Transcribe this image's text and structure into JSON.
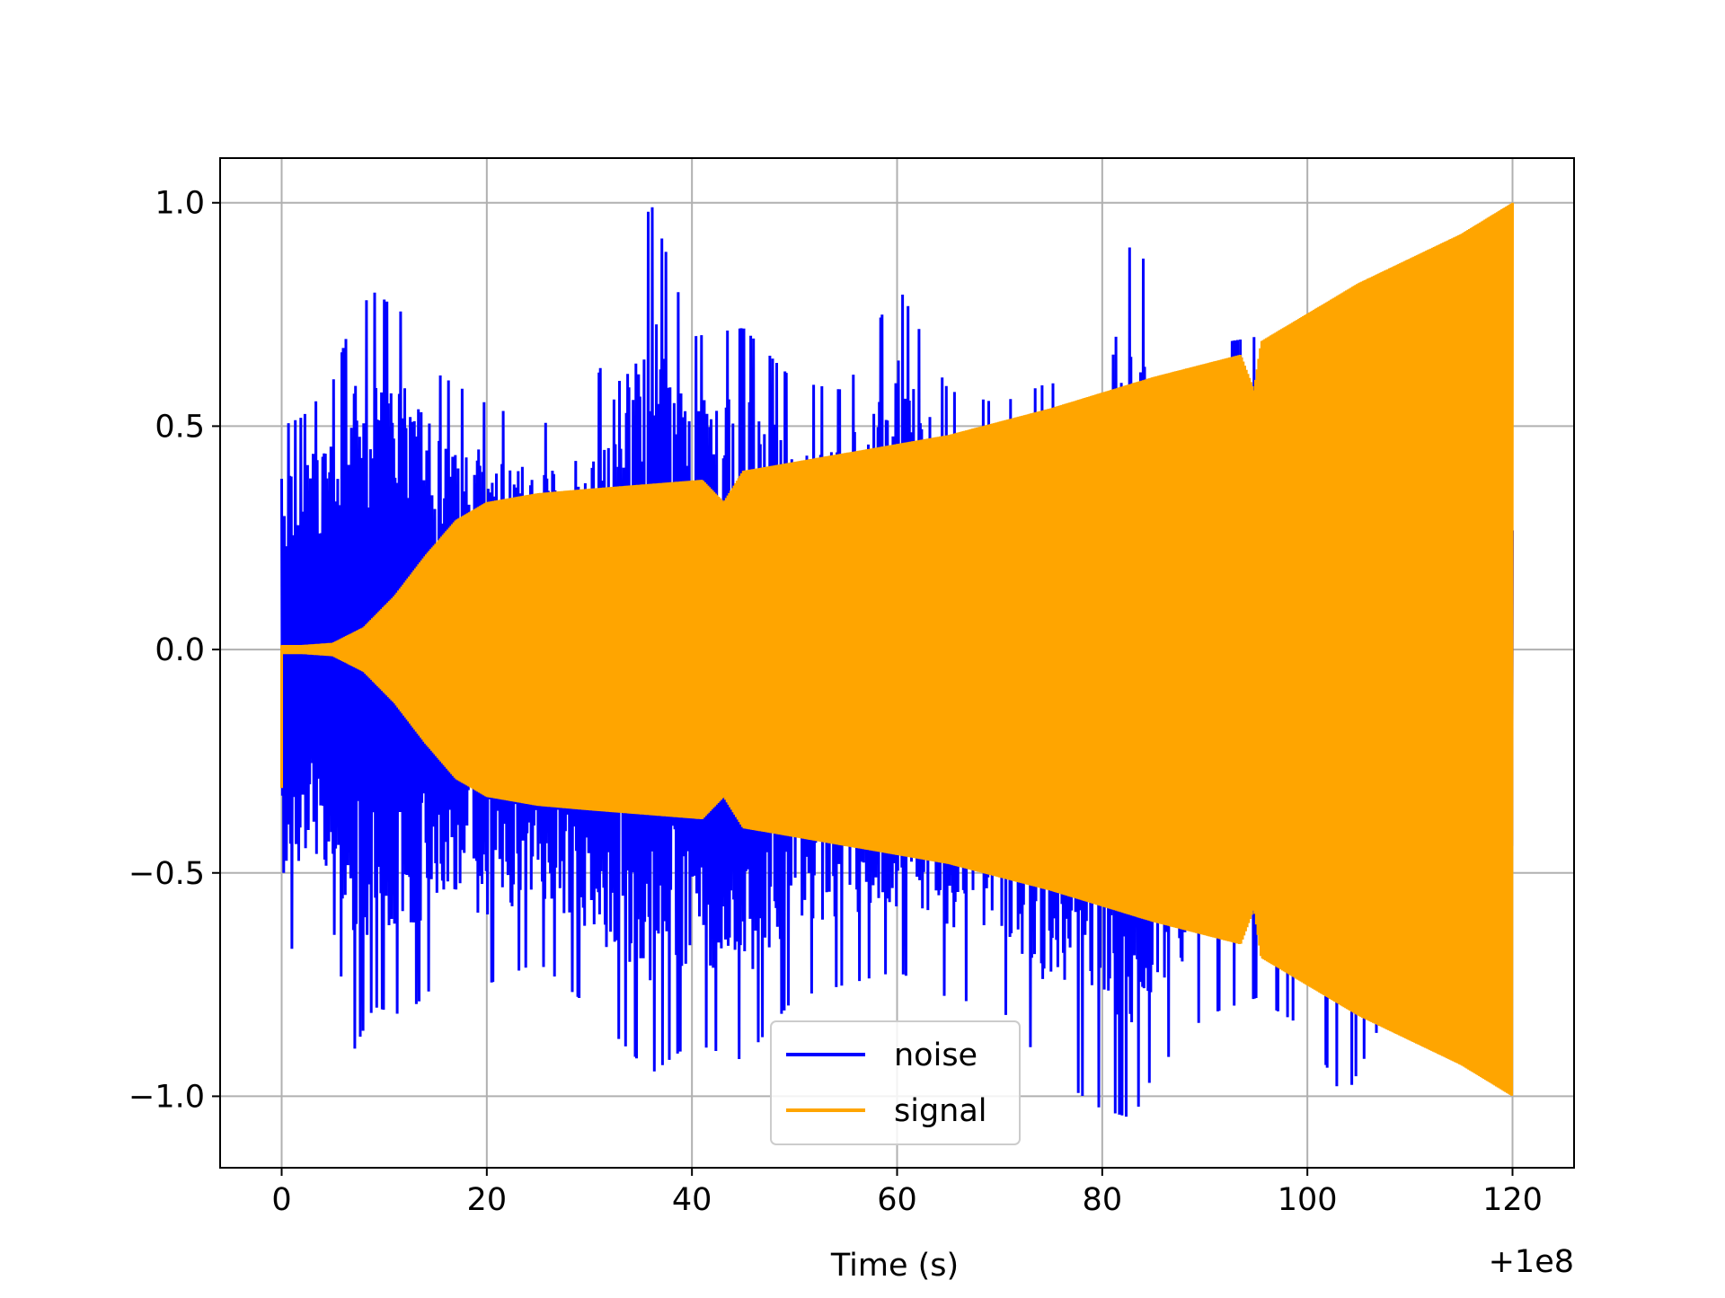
{
  "chart_data": {
    "type": "line",
    "title": "",
    "xlabel": "Time (s)",
    "ylabel": "",
    "x_offset_label": "+1e8",
    "xlim": [
      -6,
      126
    ],
    "ylim": [
      -1.16,
      1.1
    ],
    "grid": true,
    "legend_position": "lower center",
    "xticks": [
      0,
      20,
      40,
      60,
      80,
      100,
      120
    ],
    "yticks": [
      1.0,
      0.5,
      0.0,
      -0.5,
      -1.0
    ],
    "xtick_labels": [
      "0",
      "20",
      "40",
      "60",
      "80",
      "100",
      "120"
    ],
    "ytick_labels": [
      "1.0",
      "0.5",
      "0.0",
      "−0.5",
      "−1.0"
    ],
    "series": [
      {
        "name": "noise",
        "color": "#0000ff",
        "x_range": [
          0,
          120
        ],
        "envelope_x": [
          0,
          2,
          5,
          7,
          9,
          12,
          15,
          20,
          25,
          30,
          36,
          40,
          45,
          50,
          55,
          60,
          65,
          70,
          75,
          80,
          83,
          85,
          90,
          95,
          100,
          103.6,
          110,
          120
        ],
        "envelope_upper": [
          0.5,
          0.52,
          0.6,
          0.75,
          0.8,
          0.75,
          0.62,
          0.55,
          0.5,
          0.55,
          1.0,
          0.7,
          0.72,
          0.6,
          0.58,
          0.82,
          0.58,
          0.55,
          0.6,
          0.5,
          0.95,
          0.8,
          0.68,
          0.7,
          0.65,
          0.6,
          0.45,
          0.4
        ],
        "envelope_lower": [
          -0.74,
          -0.6,
          -0.62,
          -0.9,
          -0.8,
          -0.82,
          -0.75,
          -0.75,
          -0.7,
          -0.8,
          -0.95,
          -0.88,
          -0.92,
          -0.78,
          -0.75,
          -0.72,
          -0.78,
          -0.8,
          -0.95,
          -1.03,
          -1.05,
          -0.95,
          -0.82,
          -0.78,
          -0.85,
          -1.01,
          -0.7,
          -0.6
        ]
      },
      {
        "name": "signal",
        "color": "#ffa500",
        "x_range": [
          0,
          120
        ],
        "envelope_x": [
          0,
          0.3,
          2,
          5,
          8,
          11,
          14,
          17,
          20,
          25,
          30,
          41,
          43.1,
          45,
          55,
          65,
          75,
          85,
          93.5,
          94.8,
          95.5,
          105,
          115,
          120
        ],
        "envelope_amplitude": [
          0.01,
          0.01,
          0.01,
          0.015,
          0.05,
          0.12,
          0.21,
          0.29,
          0.33,
          0.35,
          0.36,
          0.38,
          0.33,
          0.4,
          0.44,
          0.48,
          0.54,
          0.61,
          0.66,
          0.58,
          0.69,
          0.82,
          0.93,
          1.0
        ],
        "initial_spike": [
          -0.31,
          0.01
        ]
      }
    ]
  }
}
